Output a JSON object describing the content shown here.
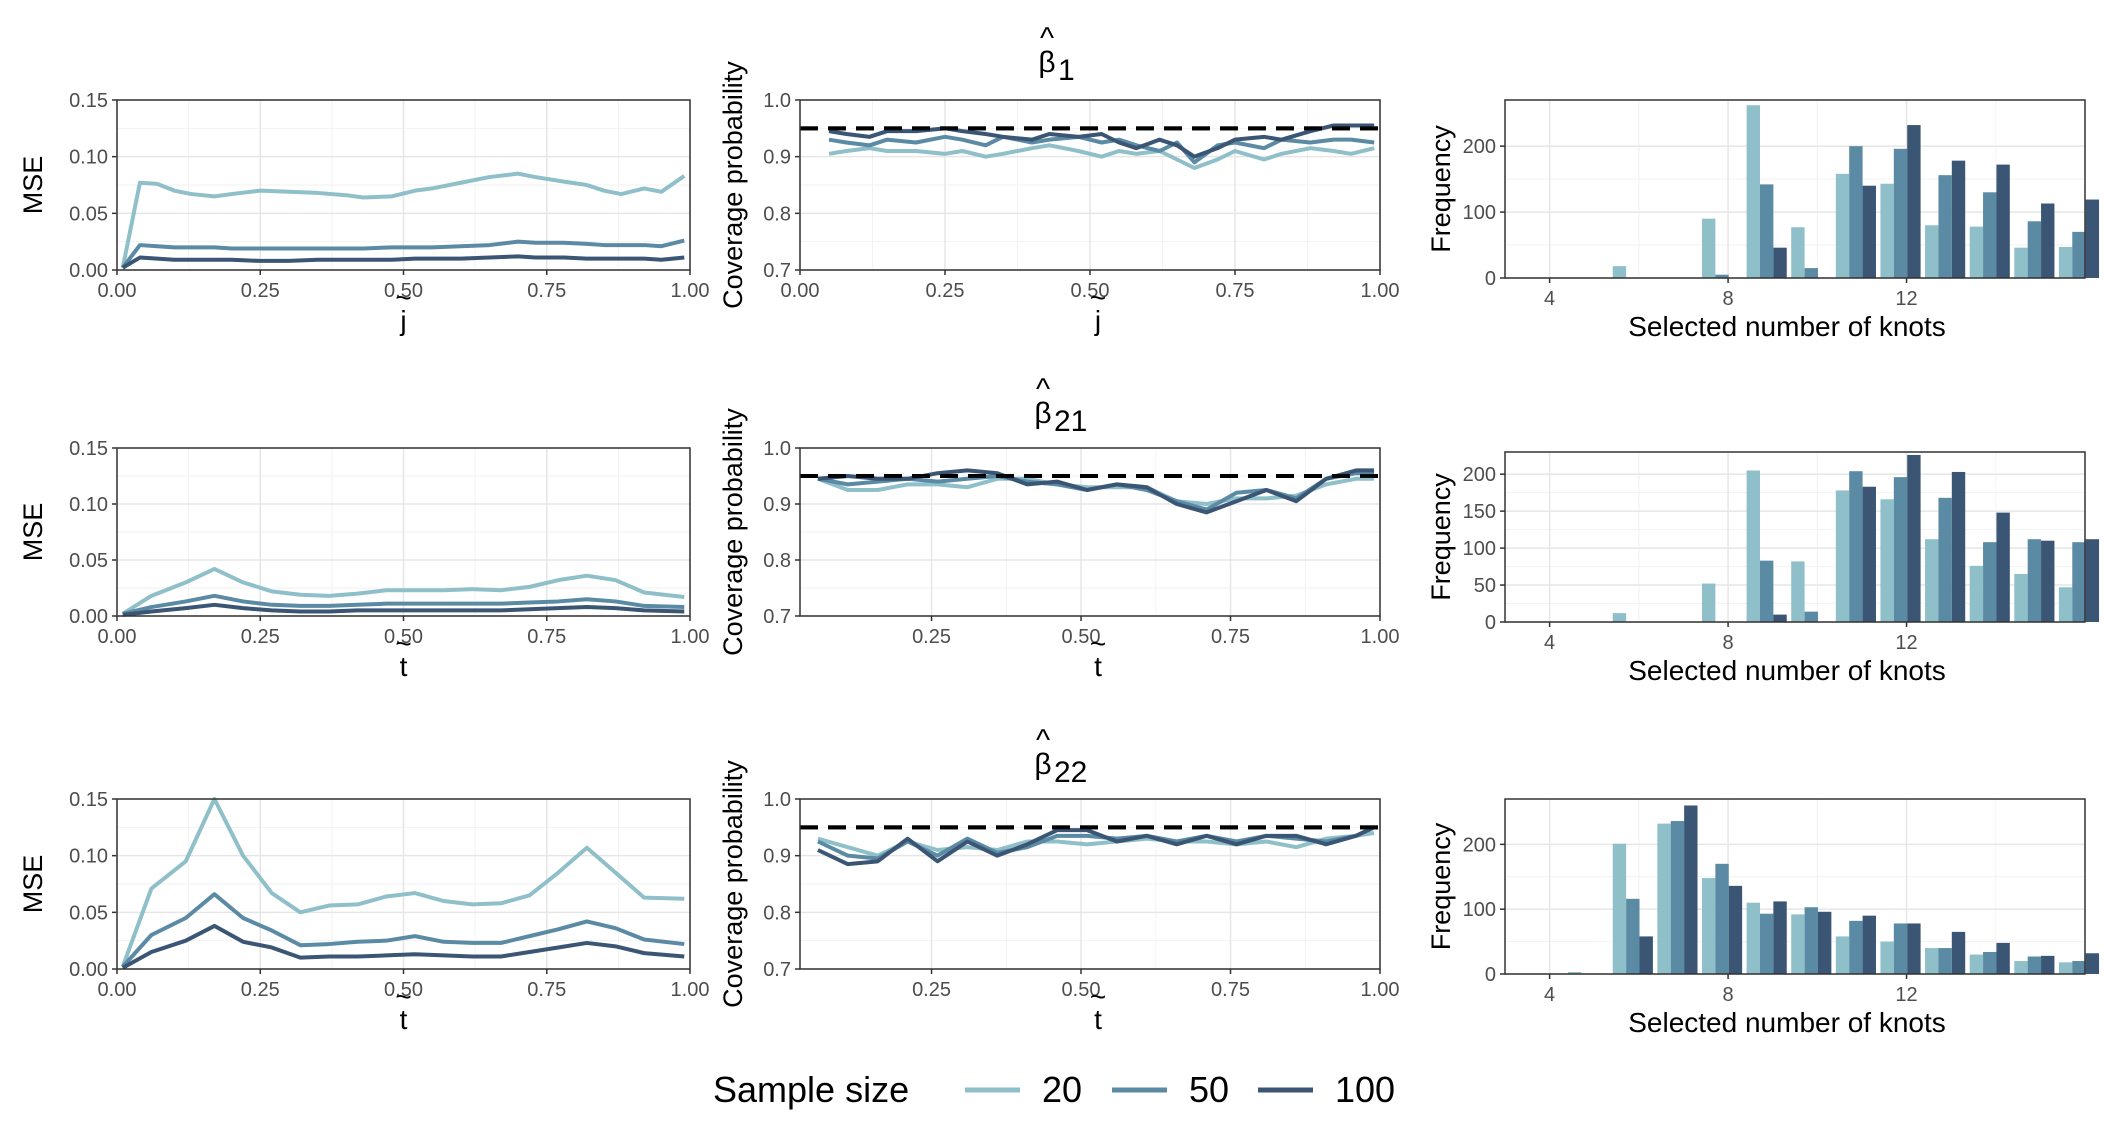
{
  "legend": {
    "title": "Sample size",
    "entries": [
      {
        "label": "20",
        "color": "#8fbfc9"
      },
      {
        "label": "50",
        "color": "#5b8aa5"
      },
      {
        "label": "100",
        "color": "#3a5674"
      }
    ]
  },
  "reference_line": 0.95,
  "rows": [
    {
      "title_base": "β",
      "title_sub": "1",
      "hat": "^",
      "tvar": "j",
      "tilde": "~"
    },
    {
      "title_base": "β",
      "title_sub": "21",
      "hat": "^",
      "tvar": "t",
      "tilde": "~"
    },
    {
      "title_base": "β",
      "title_sub": "22",
      "hat": "^",
      "tvar": "t",
      "tilde": "~"
    }
  ],
  "chart_data": [
    {
      "type": "line",
      "panel": "mse-1",
      "xlabel_var": "j",
      "ylabel": "MSE",
      "xlim": [
        0,
        1
      ],
      "ylim": [
        0,
        0.15
      ],
      "xticks": [
        "0.00",
        "0.25",
        "0.50",
        "0.75",
        "1.00"
      ],
      "yticks": [
        "0.00",
        "0.05",
        "0.10",
        "0.15"
      ],
      "x": [
        0.01,
        0.04,
        0.07,
        0.1,
        0.13,
        0.17,
        0.2,
        0.25,
        0.3,
        0.35,
        0.4,
        0.43,
        0.48,
        0.52,
        0.55,
        0.6,
        0.65,
        0.7,
        0.73,
        0.78,
        0.82,
        0.85,
        0.88,
        0.92,
        0.95,
        0.99
      ],
      "series": [
        {
          "name": "20",
          "values": [
            0.002,
            0.077,
            0.076,
            0.07,
            0.067,
            0.065,
            0.067,
            0.07,
            0.069,
            0.068,
            0.066,
            0.064,
            0.065,
            0.07,
            0.072,
            0.077,
            0.082,
            0.085,
            0.082,
            0.078,
            0.075,
            0.07,
            0.067,
            0.072,
            0.069,
            0.083
          ]
        },
        {
          "name": "50",
          "values": [
            0.002,
            0.022,
            0.021,
            0.02,
            0.02,
            0.02,
            0.019,
            0.019,
            0.019,
            0.019,
            0.019,
            0.019,
            0.02,
            0.02,
            0.02,
            0.021,
            0.022,
            0.025,
            0.024,
            0.024,
            0.023,
            0.022,
            0.022,
            0.022,
            0.021,
            0.026
          ]
        },
        {
          "name": "100",
          "values": [
            0.002,
            0.011,
            0.01,
            0.009,
            0.009,
            0.009,
            0.009,
            0.008,
            0.008,
            0.009,
            0.009,
            0.009,
            0.009,
            0.01,
            0.01,
            0.01,
            0.011,
            0.012,
            0.011,
            0.011,
            0.01,
            0.01,
            0.01,
            0.01,
            0.009,
            0.011
          ]
        }
      ]
    },
    {
      "type": "line",
      "panel": "cov-1",
      "xlabel_var": "j",
      "ylabel": "Coverage probability",
      "xlim": [
        0,
        1
      ],
      "ylim": [
        0.7,
        1.0
      ],
      "xticks": [
        "0.00",
        "0.25",
        "0.50",
        "0.75",
        "1.00"
      ],
      "yticks": [
        "0.7",
        "0.8",
        "0.9",
        "1.0"
      ],
      "x": [
        0.05,
        0.08,
        0.12,
        0.15,
        0.2,
        0.25,
        0.28,
        0.32,
        0.35,
        0.4,
        0.43,
        0.48,
        0.52,
        0.55,
        0.58,
        0.62,
        0.65,
        0.68,
        0.72,
        0.75,
        0.8,
        0.83,
        0.88,
        0.92,
        0.95,
        0.99
      ],
      "series": [
        {
          "name": "20",
          "values": [
            0.905,
            0.91,
            0.915,
            0.91,
            0.91,
            0.905,
            0.91,
            0.9,
            0.905,
            0.915,
            0.92,
            0.91,
            0.9,
            0.91,
            0.905,
            0.91,
            0.895,
            0.88,
            0.895,
            0.91,
            0.895,
            0.905,
            0.915,
            0.91,
            0.905,
            0.915
          ]
        },
        {
          "name": "50",
          "values": [
            0.93,
            0.925,
            0.92,
            0.93,
            0.925,
            0.935,
            0.93,
            0.92,
            0.935,
            0.925,
            0.93,
            0.935,
            0.925,
            0.93,
            0.92,
            0.91,
            0.925,
            0.89,
            0.92,
            0.925,
            0.915,
            0.93,
            0.925,
            0.93,
            0.93,
            0.925
          ]
        },
        {
          "name": "100",
          "values": [
            0.945,
            0.94,
            0.935,
            0.945,
            0.945,
            0.95,
            0.945,
            0.94,
            0.935,
            0.93,
            0.94,
            0.935,
            0.94,
            0.925,
            0.915,
            0.93,
            0.92,
            0.9,
            0.915,
            0.93,
            0.935,
            0.93,
            0.945,
            0.955,
            0.955,
            0.955
          ]
        }
      ]
    },
    {
      "type": "bar",
      "panel": "freq-1",
      "xlabel": "Selected number of knots",
      "ylabel": "Frequency",
      "ylim": [
        0,
        270
      ],
      "xlim": [
        3,
        16
      ],
      "xticks": [
        "4",
        "8",
        "12"
      ],
      "yticks": [
        "0",
        "100",
        "200"
      ],
      "categories": [
        4,
        5,
        6,
        7,
        8,
        9,
        10,
        11,
        12,
        13,
        14,
        15
      ],
      "series": [
        {
          "name": "20",
          "values": [
            0,
            18,
            0,
            90,
            262,
            77,
            158,
            143,
            80,
            78,
            46,
            47
          ]
        },
        {
          "name": "50",
          "values": [
            0,
            0,
            0,
            5,
            142,
            15,
            200,
            196,
            156,
            130,
            86,
            70
          ]
        },
        {
          "name": "100",
          "values": [
            0,
            0,
            0,
            0,
            46,
            0,
            140,
            232,
            178,
            172,
            113,
            119
          ]
        }
      ]
    },
    {
      "type": "line",
      "panel": "mse-21",
      "xlabel_var": "t",
      "ylabel": "MSE",
      "xlim": [
        0,
        1
      ],
      "ylim": [
        0,
        0.15
      ],
      "xticks": [
        "0.00",
        "0.25",
        "0.50",
        "0.75",
        "1.00"
      ],
      "yticks": [
        "0.00",
        "0.05",
        "0.10",
        "0.15"
      ],
      "x": [
        0.01,
        0.06,
        0.12,
        0.17,
        0.22,
        0.27,
        0.32,
        0.37,
        0.42,
        0.47,
        0.52,
        0.57,
        0.62,
        0.67,
        0.72,
        0.77,
        0.82,
        0.87,
        0.92,
        0.99
      ],
      "series": [
        {
          "name": "20",
          "values": [
            0.002,
            0.018,
            0.03,
            0.042,
            0.03,
            0.022,
            0.019,
            0.018,
            0.02,
            0.023,
            0.023,
            0.023,
            0.024,
            0.023,
            0.026,
            0.032,
            0.036,
            0.032,
            0.021,
            0.017
          ]
        },
        {
          "name": "50",
          "values": [
            0.002,
            0.008,
            0.013,
            0.018,
            0.013,
            0.01,
            0.009,
            0.009,
            0.01,
            0.011,
            0.011,
            0.011,
            0.011,
            0.011,
            0.012,
            0.013,
            0.015,
            0.013,
            0.009,
            0.008
          ]
        },
        {
          "name": "100",
          "values": [
            0.001,
            0.004,
            0.007,
            0.01,
            0.007,
            0.005,
            0.004,
            0.004,
            0.005,
            0.005,
            0.005,
            0.005,
            0.005,
            0.005,
            0.006,
            0.007,
            0.008,
            0.007,
            0.005,
            0.004
          ]
        }
      ]
    },
    {
      "type": "line",
      "panel": "cov-21",
      "xlabel_var": "t",
      "ylabel": "Coverage probability",
      "xlim": [
        0.03,
        1.0
      ],
      "ylim": [
        0.7,
        1.0
      ],
      "xticks": [
        "0.25",
        "0.50",
        "0.75",
        "1.00"
      ],
      "yticks": [
        "0.7",
        "0.8",
        "0.9",
        "1.0"
      ],
      "x": [
        0.06,
        0.11,
        0.16,
        0.21,
        0.26,
        0.31,
        0.36,
        0.41,
        0.46,
        0.51,
        0.56,
        0.61,
        0.66,
        0.71,
        0.76,
        0.81,
        0.86,
        0.91,
        0.96,
        0.99
      ],
      "series": [
        {
          "name": "20",
          "values": [
            0.945,
            0.925,
            0.925,
            0.935,
            0.935,
            0.93,
            0.945,
            0.945,
            0.935,
            0.93,
            0.93,
            0.93,
            0.905,
            0.9,
            0.91,
            0.91,
            0.915,
            0.935,
            0.945,
            0.945
          ]
        },
        {
          "name": "50",
          "values": [
            0.945,
            0.935,
            0.94,
            0.945,
            0.94,
            0.945,
            0.95,
            0.94,
            0.935,
            0.925,
            0.935,
            0.925,
            0.905,
            0.89,
            0.92,
            0.925,
            0.91,
            0.945,
            0.955,
            0.955
          ]
        },
        {
          "name": "100",
          "values": [
            0.945,
            0.95,
            0.945,
            0.945,
            0.955,
            0.96,
            0.955,
            0.935,
            0.94,
            0.925,
            0.935,
            0.93,
            0.9,
            0.885,
            0.905,
            0.925,
            0.905,
            0.945,
            0.96,
            0.96
          ]
        }
      ]
    },
    {
      "type": "bar",
      "panel": "freq-21",
      "xlabel": "Selected number of knots",
      "ylabel": "Frequency",
      "ylim": [
        0,
        230
      ],
      "xlim": [
        3,
        16
      ],
      "xticks": [
        "4",
        "8",
        "12"
      ],
      "yticks": [
        "0",
        "50",
        "100",
        "150",
        "200"
      ],
      "categories": [
        4,
        5,
        6,
        7,
        8,
        9,
        10,
        11,
        12,
        13,
        14,
        15
      ],
      "series": [
        {
          "name": "20",
          "values": [
            0,
            12,
            0,
            52,
            205,
            82,
            178,
            166,
            112,
            76,
            65,
            47
          ]
        },
        {
          "name": "50",
          "values": [
            0,
            0,
            0,
            0,
            83,
            14,
            204,
            196,
            168,
            108,
            112,
            108
          ]
        },
        {
          "name": "100",
          "values": [
            0,
            0,
            0,
            0,
            10,
            0,
            183,
            226,
            203,
            148,
            110,
            112
          ]
        }
      ]
    },
    {
      "type": "line",
      "panel": "mse-22",
      "xlabel_var": "t",
      "ylabel": "MSE",
      "xlim": [
        0,
        1
      ],
      "ylim": [
        0,
        0.15
      ],
      "xticks": [
        "0.00",
        "0.25",
        "0.50",
        "0.75",
        "1.00"
      ],
      "yticks": [
        "0.00",
        "0.05",
        "0.10",
        "0.15"
      ],
      "x": [
        0.01,
        0.06,
        0.12,
        0.17,
        0.22,
        0.27,
        0.32,
        0.37,
        0.42,
        0.47,
        0.52,
        0.57,
        0.62,
        0.67,
        0.72,
        0.77,
        0.82,
        0.87,
        0.92,
        0.99
      ],
      "series": [
        {
          "name": "20",
          "values": [
            0.002,
            0.071,
            0.095,
            0.15,
            0.1,
            0.067,
            0.05,
            0.056,
            0.057,
            0.064,
            0.067,
            0.06,
            0.057,
            0.058,
            0.065,
            0.085,
            0.107,
            0.085,
            0.063,
            0.062
          ]
        },
        {
          "name": "50",
          "values": [
            0.002,
            0.03,
            0.045,
            0.066,
            0.045,
            0.034,
            0.021,
            0.022,
            0.024,
            0.025,
            0.029,
            0.024,
            0.023,
            0.023,
            0.029,
            0.035,
            0.042,
            0.036,
            0.026,
            0.022
          ]
        },
        {
          "name": "100",
          "values": [
            0.001,
            0.015,
            0.025,
            0.038,
            0.024,
            0.019,
            0.01,
            0.011,
            0.011,
            0.012,
            0.013,
            0.012,
            0.011,
            0.011,
            0.015,
            0.019,
            0.023,
            0.02,
            0.014,
            0.011
          ]
        }
      ]
    },
    {
      "type": "line",
      "panel": "cov-22",
      "xlabel_var": "t",
      "ylabel": "Coverage probability",
      "xlim": [
        0.03,
        1.0
      ],
      "ylim": [
        0.7,
        1.0
      ],
      "xticks": [
        "0.25",
        "0.50",
        "0.75",
        "1.00"
      ],
      "yticks": [
        "0.7",
        "0.8",
        "0.9",
        "1.0"
      ],
      "x": [
        0.06,
        0.11,
        0.16,
        0.21,
        0.26,
        0.31,
        0.36,
        0.41,
        0.46,
        0.51,
        0.56,
        0.61,
        0.66,
        0.71,
        0.76,
        0.81,
        0.86,
        0.91,
        0.96,
        0.99
      ],
      "series": [
        {
          "name": "20",
          "values": [
            0.93,
            0.915,
            0.9,
            0.925,
            0.91,
            0.915,
            0.91,
            0.925,
            0.925,
            0.92,
            0.925,
            0.93,
            0.925,
            0.925,
            0.92,
            0.925,
            0.915,
            0.93,
            0.935,
            0.94
          ]
        },
        {
          "name": "50",
          "values": [
            0.925,
            0.9,
            0.895,
            0.925,
            0.9,
            0.93,
            0.905,
            0.915,
            0.935,
            0.935,
            0.93,
            0.935,
            0.925,
            0.935,
            0.925,
            0.935,
            0.93,
            0.925,
            0.935,
            0.95
          ]
        },
        {
          "name": "100",
          "values": [
            0.91,
            0.885,
            0.89,
            0.93,
            0.89,
            0.925,
            0.9,
            0.92,
            0.945,
            0.945,
            0.925,
            0.935,
            0.92,
            0.935,
            0.92,
            0.935,
            0.935,
            0.92,
            0.935,
            0.95
          ]
        }
      ]
    },
    {
      "type": "bar",
      "panel": "freq-22",
      "xlabel": "Selected number of knots",
      "ylabel": "Frequency",
      "ylim": [
        0,
        270
      ],
      "xlim": [
        3,
        16
      ],
      "xticks": [
        "4",
        "8",
        "12"
      ],
      "yticks": [
        "0",
        "100",
        "200"
      ],
      "categories": [
        4,
        5,
        6,
        7,
        8,
        9,
        10,
        11,
        12,
        13,
        14,
        15
      ],
      "series": [
        {
          "name": "20",
          "values": [
            3,
            201,
            232,
            148,
            110,
            92,
            58,
            50,
            40,
            30,
            20,
            18
          ]
        },
        {
          "name": "50",
          "values": [
            0,
            116,
            236,
            170,
            93,
            103,
            82,
            78,
            40,
            34,
            27,
            20
          ]
        },
        {
          "name": "100",
          "values": [
            0,
            58,
            260,
            136,
            112,
            96,
            90,
            78,
            65,
            48,
            28,
            32
          ]
        }
      ]
    }
  ]
}
